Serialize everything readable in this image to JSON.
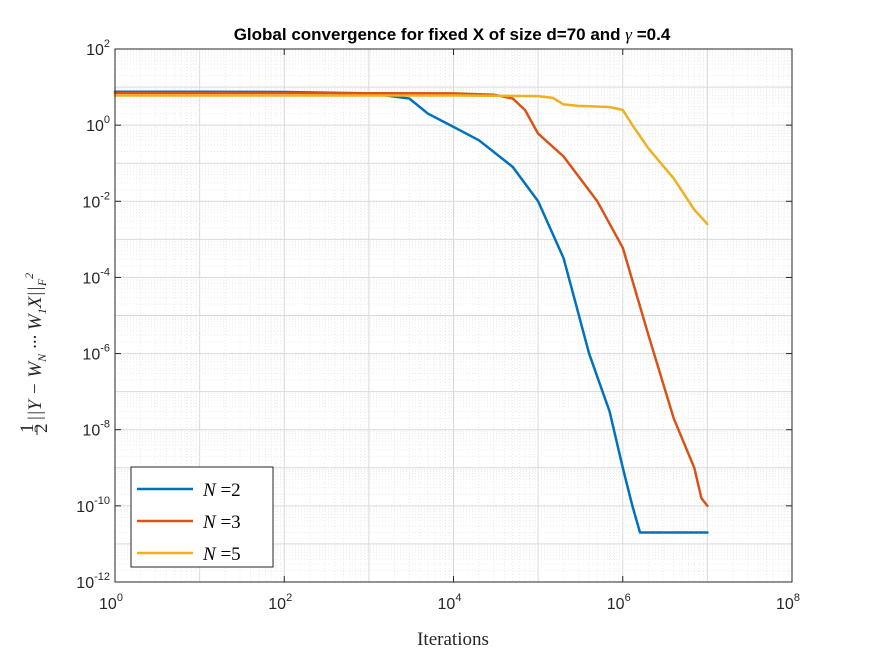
{
  "chart_data": {
    "type": "line",
    "title_prefix": "Global convergence for fixed X of size d=70 and ",
    "title_symbol": "γ",
    "title_suffix": " =0.4",
    "xlabel": "Iterations",
    "ylabel": "½||Y − W_N ··· W_1 X||_F²",
    "ylabel_parts": {
      "frac_num": "1",
      "frac_den": "2",
      "body": "||Y − W",
      "sub1": "N",
      "mid": " ··· W",
      "sub2": "1",
      "tail": "X||",
      "sub3": "F",
      "sup": "2"
    },
    "x_scale": "log",
    "y_scale": "log",
    "xlim": [
      1,
      100000000
    ],
    "ylim": [
      1e-12,
      100
    ],
    "x_ticks": [
      {
        "base": "10",
        "exp": "0",
        "value": 1
      },
      {
        "base": "10",
        "exp": "2",
        "value": 100
      },
      {
        "base": "10",
        "exp": "4",
        "value": 10000
      },
      {
        "base": "10",
        "exp": "6",
        "value": 1000000
      },
      {
        "base": "10",
        "exp": "8",
        "value": 100000000
      }
    ],
    "y_ticks": [
      {
        "base": "10",
        "exp": "-12",
        "value": 1e-12
      },
      {
        "base": "10",
        "exp": "-10",
        "value": 1e-10
      },
      {
        "base": "10",
        "exp": "-8",
        "value": 1e-08
      },
      {
        "base": "10",
        "exp": "-6",
        "value": 1e-06
      },
      {
        "base": "10",
        "exp": "-4",
        "value": 0.0001
      },
      {
        "base": "10",
        "exp": "-2",
        "value": 0.01
      },
      {
        "base": "10",
        "exp": "0",
        "value": 1
      },
      {
        "base": "10",
        "exp": "2",
        "value": 100
      }
    ],
    "grid": true,
    "minor_grid": true,
    "legend_position": "bottom-left",
    "series": [
      {
        "name": "N =2",
        "label_var": "N",
        "label_eq": " =2",
        "color": "#0072BD",
        "points": [
          [
            1,
            7.5
          ],
          [
            10,
            7.5
          ],
          [
            100,
            7.4
          ],
          [
            1000,
            6.8
          ],
          [
            3000,
            5.0
          ],
          [
            5000,
            2.0
          ],
          [
            10000,
            0.9
          ],
          [
            20000,
            0.4
          ],
          [
            50000,
            0.08
          ],
          [
            100000,
            0.01
          ],
          [
            200000,
            0.00032
          ],
          [
            400000,
            1e-06
          ],
          [
            700000,
            3e-08
          ],
          [
            1000000,
            1e-09
          ],
          [
            1300000,
            1e-10
          ],
          [
            1600000,
            2e-11
          ],
          [
            3000000,
            2e-11
          ],
          [
            10000000,
            2e-11
          ]
        ]
      },
      {
        "name": "N =3",
        "label_var": "N",
        "label_eq": " =3",
        "color": "#D95319",
        "points": [
          [
            1,
            7.0
          ],
          [
            100,
            7.0
          ],
          [
            1000,
            6.9
          ],
          [
            10000,
            6.8
          ],
          [
            30000,
            6.3
          ],
          [
            50000,
            5.0
          ],
          [
            70000,
            2.5
          ],
          [
            100000,
            0.6
          ],
          [
            200000,
            0.15
          ],
          [
            500000,
            0.01
          ],
          [
            1000000,
            0.0006
          ],
          [
            2000000,
            3.2e-06
          ],
          [
            4000000,
            2e-08
          ],
          [
            7000000,
            1e-09
          ],
          [
            8500000,
            1.6e-10
          ],
          [
            10000000,
            1e-10
          ]
        ]
      },
      {
        "name": "N =5",
        "label_var": "N",
        "label_eq": " =5",
        "color": "#EDB120",
        "points": [
          [
            1,
            6.0
          ],
          [
            1000,
            6.0
          ],
          [
            10000,
            6.0
          ],
          [
            100000,
            5.8
          ],
          [
            150000,
            5.2
          ],
          [
            200000,
            3.5
          ],
          [
            300000,
            3.2
          ],
          [
            700000,
            3.0
          ],
          [
            1000000,
            2.5
          ],
          [
            1300000,
            1.0
          ],
          [
            2000000,
            0.25
          ],
          [
            4000000,
            0.04
          ],
          [
            7000000,
            0.006
          ],
          [
            10000000,
            0.0025
          ]
        ]
      }
    ]
  }
}
